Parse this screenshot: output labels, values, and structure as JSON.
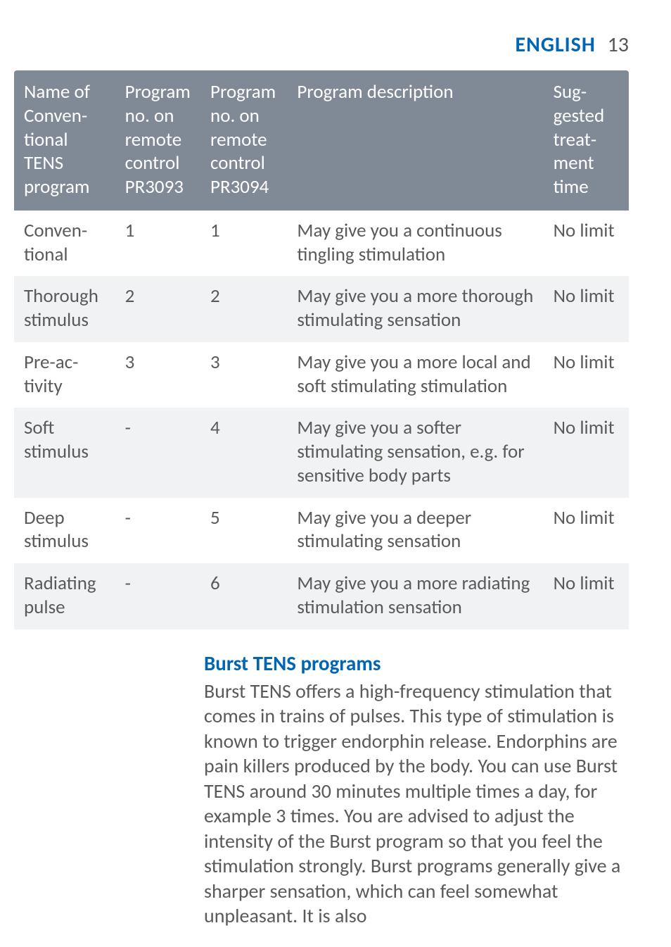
{
  "header": {
    "language": "ENGLISH",
    "page_number": "13",
    "lang_color": "#0066b3",
    "num_color": "#555555"
  },
  "table": {
    "header_bg": "#808a97",
    "header_text_color": "#ffffff",
    "row_alt_bg": "#f1f2f3",
    "cell_text_color": "#5a5a5a",
    "columns": [
      "Name of Conven­tional TENS program",
      "Program no. on remote control PR3093",
      "Program no. on remote control PR3094",
      "Program description",
      "Sug­gested treat­ment time"
    ],
    "rows": [
      {
        "cells": [
          "Conven­tional",
          "1",
          "1",
          "May give you a continu­ous tingling stimulation",
          "No limit"
        ],
        "alt": false
      },
      {
        "cells": [
          "Thorough stimulus",
          "2",
          "2",
          "May give you a more thorough stimulating sensation",
          "No limit"
        ],
        "alt": true
      },
      {
        "cells": [
          "Pre-ac­tivity",
          "3",
          "3",
          "May give you a more local and soft stimulating stimulation",
          "No limit"
        ],
        "alt": false
      },
      {
        "cells": [
          "Soft stimulus",
          "-",
          "4",
          "May give you a softer stimulating sensation, e.g. for sensitive body parts",
          "No limit"
        ],
        "alt": true
      },
      {
        "cells": [
          "Deep stimulus",
          "-",
          "5",
          "May give you a deeper stimulating sensation",
          "No limit"
        ],
        "alt": false
      },
      {
        "cells": [
          "Radiating pulse",
          "-",
          "6",
          "May give you a more radiating stimulation sensation",
          "No limit"
        ],
        "alt": true
      }
    ]
  },
  "section": {
    "heading": "Burst TENS programs",
    "heading_color": "#0066b3",
    "body": "Burst TENS offers a high-frequency stimulation that comes in trains of pulses. This type of stimulation is known to trigger endorphin release. Endorphins are pain killers produced by the body. You can use Burst TENS around 30 minutes multiple times a day, for example 3 times. You are advised to adjust the intensity of the Burst program so that you feel the stimulation strongly. Burst programs generally give a sharper sensation, which can feel somewhat unpleasant. It is also",
    "body_color": "#5a5a5a"
  }
}
